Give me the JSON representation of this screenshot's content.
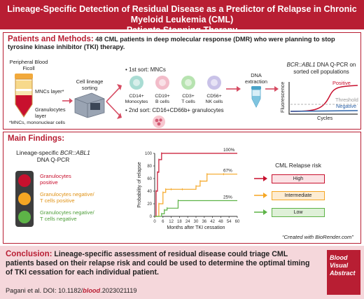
{
  "title": {
    "line1": "Lineage-Specific Detection of Residual Disease as a Predictor of Relapse in Chronic Myeloid Leukemia (CML)",
    "line2": "Patients Stopping Therapy"
  },
  "patients_methods": {
    "lead": "Patients and Methods:",
    "text": " 48 CML patients in deep molecular response (DMR) who were planning to stop tyrosine kinase inhibitor (TKI) therapy.",
    "blood_ficoll": "Peripheral Blood Ficoll",
    "mncs_layer": "MNCs layer*",
    "gran_layer": "Granulocytes layer",
    "footnote": "*MNCs, mononuclear cells",
    "cell_lineage_sorting": "Cell lineage sorting",
    "first_sort": "1st sort: MNCs",
    "second_sort": "2nd sort: CD16+CD66b+ granulocytes",
    "cells": [
      {
        "label1": "CD14+",
        "label2": "Monocytes",
        "color": "#a9dcd3"
      },
      {
        "label1": "CD19+",
        "label2": "B cells",
        "color": "#f2bcc9"
      },
      {
        "label1": "CD3+",
        "label2": "T cells",
        "color": "#b7e3b0"
      },
      {
        "label1": "CD56+",
        "label2": "NK cells",
        "color": "#c9c2e8"
      }
    ],
    "dna_extraction": "DNA extraction",
    "qpcr_title_gene": "BCR::ABL1",
    "qpcr_title_rest": " DNA Q-PCR on sorted cell populations",
    "y_axis": "Fluorescence",
    "x_axis": "Cycles",
    "positive": "Positive",
    "threshold": "Threshold",
    "negative": "Negative"
  },
  "main_findings": {
    "title": "Main Findings:",
    "lineage_title_part1": "Lineage-specific ",
    "lineage_title_gene": "BCR::ABL1",
    "lineage_title_part2": "DNA Q-PCR",
    "legend": [
      {
        "line1": "Granulocytes",
        "line2": "positive",
        "color": "#c8102e"
      },
      {
        "line1": "Granulocytes negative/",
        "line2": "T cells positive",
        "color": "#f5a623"
      },
      {
        "line1": "Granulocytes negative/",
        "line2": "T cells negative",
        "color": "#5db347"
      }
    ],
    "km_ylabel": "Probability of relapse",
    "km_xlabel": "Months after TKI cessation",
    "risk_title": "CML Relapse risk",
    "risk_levels": [
      {
        "label": "High",
        "color": "#c8102e",
        "bg": "#fbe2e5"
      },
      {
        "label": "Intermediate",
        "color": "#f5a623",
        "bg": "#fdecd2"
      },
      {
        "label": "Low",
        "color": "#5db347",
        "bg": "#dff0d8"
      }
    ],
    "credit": "“Created with BioRender.com”"
  },
  "chart_data": {
    "type": "line",
    "xlabel": "Months after TKI cessation",
    "ylabel": "Probability of relapse",
    "xlim": [
      0,
      60
    ],
    "ylim": [
      0,
      100
    ],
    "xticks": [
      0,
      6,
      12,
      18,
      24,
      30,
      36,
      42,
      48,
      54,
      60
    ],
    "yticks": [
      0,
      20,
      40,
      60,
      80,
      100
    ],
    "series": [
      {
        "color": "#c8102e",
        "label": "100%",
        "x": [
          0,
          1,
          2,
          3,
          5,
          60
        ],
        "y": [
          0,
          40,
          70,
          90,
          100,
          100
        ]
      },
      {
        "color": "#f5a623",
        "label": "67%",
        "x": [
          0,
          3,
          6,
          8,
          12,
          20,
          30,
          33,
          38,
          50,
          60
        ],
        "y": [
          0,
          20,
          38,
          43,
          43,
          43,
          48,
          56,
          67,
          67,
          67
        ]
      },
      {
        "color": "#5db347",
        "label": "25%",
        "x": [
          0,
          5,
          7,
          9,
          17,
          60
        ],
        "y": [
          0,
          4,
          10,
          13,
          25,
          25
        ]
      }
    ]
  },
  "conclusion": {
    "lead": "Conclusion:",
    "text": " Lineage-specific assessment of residual disease could triage CML patients based on their relapse risk and could be used to determine the optimal timing of TKI cessation for each individual patient.",
    "citation_pre": "Pagani et al. DOI: 10.1182/",
    "citation_blood": "blood",
    "citation_post": ".2023021119",
    "badge": [
      "Blood",
      "Visual",
      "Abstract"
    ]
  }
}
